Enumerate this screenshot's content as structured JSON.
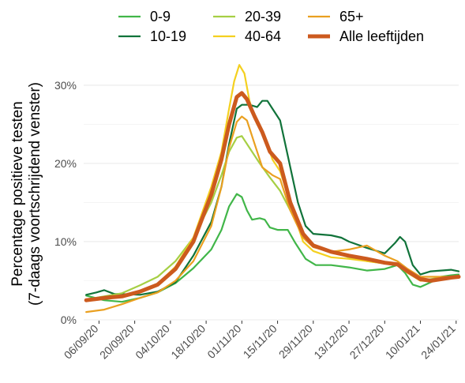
{
  "chart_data": {
    "type": "line",
    "title": "",
    "xlabel": "",
    "ylabel": "Percentage positieve testen\n(7-daags voortschrijdend venster)",
    "x_start": "2020-08-31",
    "x_end": "2021-01-25",
    "ylim": [
      0,
      0.31
    ],
    "y_ticks": [
      {
        "value": 0,
        "label": "0%"
      },
      {
        "value": 0.1,
        "label": "10%"
      },
      {
        "value": 0.2,
        "label": "20%"
      },
      {
        "value": 0.3,
        "label": "30%"
      }
    ],
    "x_ticks": [
      {
        "date": "2020-09-06",
        "label": "06/09/20"
      },
      {
        "date": "2020-09-20",
        "label": "20/09/20"
      },
      {
        "date": "2020-10-04",
        "label": "04/10/20"
      },
      {
        "date": "2020-10-18",
        "label": "18/10/20"
      },
      {
        "date": "2020-11-01",
        "label": "01/11/20"
      },
      {
        "date": "2020-11-15",
        "label": "15/11/20"
      },
      {
        "date": "2020-11-29",
        "label": "29/11/20"
      },
      {
        "date": "2020-12-13",
        "label": "13/12/20"
      },
      {
        "date": "2020-12-27",
        "label": "27/12/20"
      },
      {
        "date": "2021-01-10",
        "label": "10/01/21"
      },
      {
        "date": "2021-01-24",
        "label": "24/01/21"
      }
    ],
    "grid": true,
    "legend_position": "top",
    "series": [
      {
        "name": "0-9",
        "color": "#41b649",
        "width": 2.2,
        "points": [
          [
            "2020-09-01",
            0.031
          ],
          [
            "2020-09-08",
            0.025
          ],
          [
            "2020-09-15",
            0.023
          ],
          [
            "2020-09-22",
            0.028
          ],
          [
            "2020-09-29",
            0.035
          ],
          [
            "2020-10-06",
            0.047
          ],
          [
            "2020-10-13",
            0.066
          ],
          [
            "2020-10-20",
            0.09
          ],
          [
            "2020-10-24",
            0.115
          ],
          [
            "2020-10-27",
            0.145
          ],
          [
            "2020-10-30",
            0.161
          ],
          [
            "2020-11-01",
            0.157
          ],
          [
            "2020-11-03",
            0.14
          ],
          [
            "2020-11-05",
            0.128
          ],
          [
            "2020-11-08",
            0.13
          ],
          [
            "2020-11-10",
            0.128
          ],
          [
            "2020-11-12",
            0.118
          ],
          [
            "2020-11-15",
            0.115
          ],
          [
            "2020-11-19",
            0.115
          ],
          [
            "2020-11-22",
            0.098
          ],
          [
            "2020-11-26",
            0.078
          ],
          [
            "2020-11-30",
            0.07
          ],
          [
            "2020-12-06",
            0.07
          ],
          [
            "2020-12-13",
            0.067
          ],
          [
            "2020-12-20",
            0.063
          ],
          [
            "2020-12-27",
            0.065
          ],
          [
            "2021-01-01",
            0.07
          ],
          [
            "2021-01-04",
            0.06
          ],
          [
            "2021-01-07",
            0.045
          ],
          [
            "2021-01-10",
            0.042
          ],
          [
            "2021-01-14",
            0.048
          ],
          [
            "2021-01-18",
            0.055
          ],
          [
            "2021-01-22",
            0.057
          ],
          [
            "2021-01-25",
            0.058
          ]
        ]
      },
      {
        "name": "10-19",
        "color": "#11733a",
        "width": 2.2,
        "points": [
          [
            "2020-09-01",
            0.032
          ],
          [
            "2020-09-05",
            0.035
          ],
          [
            "2020-09-08",
            0.038
          ],
          [
            "2020-09-12",
            0.033
          ],
          [
            "2020-09-15",
            0.033
          ],
          [
            "2020-09-22",
            0.032
          ],
          [
            "2020-09-29",
            0.036
          ],
          [
            "2020-10-06",
            0.048
          ],
          [
            "2020-10-13",
            0.082
          ],
          [
            "2020-10-20",
            0.125
          ],
          [
            "2020-10-24",
            0.17
          ],
          [
            "2020-10-27",
            0.225
          ],
          [
            "2020-10-30",
            0.27
          ],
          [
            "2020-11-01",
            0.275
          ],
          [
            "2020-11-04",
            0.275
          ],
          [
            "2020-11-07",
            0.272
          ],
          [
            "2020-11-09",
            0.28
          ],
          [
            "2020-11-11",
            0.28
          ],
          [
            "2020-11-13",
            0.27
          ],
          [
            "2020-11-16",
            0.255
          ],
          [
            "2020-11-19",
            0.21
          ],
          [
            "2020-11-23",
            0.15
          ],
          [
            "2020-11-26",
            0.12
          ],
          [
            "2020-11-29",
            0.11
          ],
          [
            "2020-12-06",
            0.108
          ],
          [
            "2020-12-10",
            0.105
          ],
          [
            "2020-12-13",
            0.1
          ],
          [
            "2020-12-20",
            0.092
          ],
          [
            "2020-12-27",
            0.085
          ],
          [
            "2020-12-31",
            0.098
          ],
          [
            "2021-01-02",
            0.106
          ],
          [
            "2021-01-04",
            0.1
          ],
          [
            "2021-01-07",
            0.07
          ],
          [
            "2021-01-10",
            0.058
          ],
          [
            "2021-01-14",
            0.062
          ],
          [
            "2021-01-18",
            0.063
          ],
          [
            "2021-01-22",
            0.064
          ],
          [
            "2021-01-25",
            0.062
          ]
        ]
      },
      {
        "name": "20-39",
        "color": "#a6cf44",
        "width": 2.2,
        "points": [
          [
            "2020-09-01",
            0.026
          ],
          [
            "2020-09-08",
            0.03
          ],
          [
            "2020-09-15",
            0.034
          ],
          [
            "2020-09-22",
            0.044
          ],
          [
            "2020-09-29",
            0.055
          ],
          [
            "2020-10-06",
            0.075
          ],
          [
            "2020-10-13",
            0.105
          ],
          [
            "2020-10-20",
            0.15
          ],
          [
            "2020-10-24",
            0.185
          ],
          [
            "2020-10-27",
            0.215
          ],
          [
            "2020-10-30",
            0.233
          ],
          [
            "2020-11-01",
            0.235
          ],
          [
            "2020-11-04",
            0.22
          ],
          [
            "2020-11-08",
            0.2
          ],
          [
            "2020-11-12",
            0.182
          ],
          [
            "2020-11-16",
            0.165
          ],
          [
            "2020-11-20",
            0.14
          ],
          [
            "2020-11-25",
            0.11
          ],
          [
            "2020-11-29",
            0.095
          ],
          [
            "2020-12-06",
            0.087
          ],
          [
            "2020-12-13",
            0.08
          ],
          [
            "2020-12-20",
            0.075
          ],
          [
            "2020-12-27",
            0.072
          ],
          [
            "2021-01-01",
            0.072
          ],
          [
            "2021-01-05",
            0.06
          ],
          [
            "2021-01-10",
            0.05
          ],
          [
            "2021-01-14",
            0.052
          ],
          [
            "2021-01-18",
            0.054
          ],
          [
            "2021-01-22",
            0.055
          ],
          [
            "2021-01-25",
            0.056
          ]
        ]
      },
      {
        "name": "40-64",
        "color": "#f4d020",
        "width": 2.2,
        "points": [
          [
            "2020-09-01",
            0.025
          ],
          [
            "2020-09-08",
            0.027
          ],
          [
            "2020-09-15",
            0.03
          ],
          [
            "2020-09-22",
            0.035
          ],
          [
            "2020-09-29",
            0.046
          ],
          [
            "2020-10-06",
            0.068
          ],
          [
            "2020-10-13",
            0.105
          ],
          [
            "2020-10-20",
            0.17
          ],
          [
            "2020-10-24",
            0.215
          ],
          [
            "2020-10-27",
            0.27
          ],
          [
            "2020-10-29",
            0.305
          ],
          [
            "2020-10-31",
            0.326
          ],
          [
            "2020-11-02",
            0.315
          ],
          [
            "2020-11-04",
            0.28
          ],
          [
            "2020-11-07",
            0.25
          ],
          [
            "2020-11-10",
            0.235
          ],
          [
            "2020-11-13",
            0.205
          ],
          [
            "2020-11-16",
            0.19
          ],
          [
            "2020-11-20",
            0.15
          ],
          [
            "2020-11-25",
            0.1
          ],
          [
            "2020-11-29",
            0.088
          ],
          [
            "2020-12-06",
            0.08
          ],
          [
            "2020-12-13",
            0.078
          ],
          [
            "2020-12-20",
            0.075
          ],
          [
            "2020-12-27",
            0.072
          ],
          [
            "2021-01-01",
            0.07
          ],
          [
            "2021-01-05",
            0.06
          ],
          [
            "2021-01-10",
            0.05
          ],
          [
            "2021-01-14",
            0.05
          ],
          [
            "2021-01-18",
            0.052
          ],
          [
            "2021-01-22",
            0.054
          ],
          [
            "2021-01-25",
            0.055
          ]
        ]
      },
      {
        "name": "65+",
        "color": "#eaa020",
        "width": 2.2,
        "points": [
          [
            "2020-09-01",
            0.01
          ],
          [
            "2020-09-08",
            0.013
          ],
          [
            "2020-09-15",
            0.02
          ],
          [
            "2020-09-22",
            0.028
          ],
          [
            "2020-09-29",
            0.035
          ],
          [
            "2020-10-06",
            0.05
          ],
          [
            "2020-10-13",
            0.075
          ],
          [
            "2020-10-20",
            0.12
          ],
          [
            "2020-10-24",
            0.17
          ],
          [
            "2020-10-27",
            0.22
          ],
          [
            "2020-10-30",
            0.253
          ],
          [
            "2020-11-01",
            0.26
          ],
          [
            "2020-11-03",
            0.255
          ],
          [
            "2020-11-06",
            0.225
          ],
          [
            "2020-11-09",
            0.195
          ],
          [
            "2020-11-13",
            0.185
          ],
          [
            "2020-11-16",
            0.18
          ],
          [
            "2020-11-20",
            0.14
          ],
          [
            "2020-11-25",
            0.105
          ],
          [
            "2020-11-29",
            0.093
          ],
          [
            "2020-12-06",
            0.087
          ],
          [
            "2020-12-13",
            0.09
          ],
          [
            "2020-12-20",
            0.095
          ],
          [
            "2020-12-27",
            0.082
          ],
          [
            "2021-01-01",
            0.075
          ],
          [
            "2021-01-05",
            0.065
          ],
          [
            "2021-01-10",
            0.055
          ],
          [
            "2021-01-14",
            0.055
          ],
          [
            "2021-01-18",
            0.055
          ],
          [
            "2021-01-22",
            0.055
          ],
          [
            "2021-01-25",
            0.055
          ]
        ]
      },
      {
        "name": "Alle leeftijden",
        "color": "#cc5a1e",
        "width": 5,
        "points": [
          [
            "2020-09-01",
            0.025
          ],
          [
            "2020-09-08",
            0.028
          ],
          [
            "2020-09-15",
            0.03
          ],
          [
            "2020-09-22",
            0.036
          ],
          [
            "2020-09-29",
            0.045
          ],
          [
            "2020-10-06",
            0.065
          ],
          [
            "2020-10-13",
            0.1
          ],
          [
            "2020-10-20",
            0.16
          ],
          [
            "2020-10-24",
            0.205
          ],
          [
            "2020-10-27",
            0.25
          ],
          [
            "2020-10-30",
            0.285
          ],
          [
            "2020-11-01",
            0.29
          ],
          [
            "2020-11-03",
            0.282
          ],
          [
            "2020-11-06",
            0.26
          ],
          [
            "2020-11-09",
            0.24
          ],
          [
            "2020-11-12",
            0.215
          ],
          [
            "2020-11-16",
            0.2
          ],
          [
            "2020-11-20",
            0.15
          ],
          [
            "2020-11-25",
            0.11
          ],
          [
            "2020-11-29",
            0.095
          ],
          [
            "2020-12-06",
            0.087
          ],
          [
            "2020-12-13",
            0.082
          ],
          [
            "2020-12-20",
            0.078
          ],
          [
            "2020-12-27",
            0.073
          ],
          [
            "2021-01-01",
            0.071
          ],
          [
            "2021-01-05",
            0.062
          ],
          [
            "2021-01-10",
            0.052
          ],
          [
            "2021-01-14",
            0.05
          ],
          [
            "2021-01-18",
            0.052
          ],
          [
            "2021-01-22",
            0.054
          ],
          [
            "2021-01-25",
            0.055
          ]
        ]
      }
    ]
  }
}
